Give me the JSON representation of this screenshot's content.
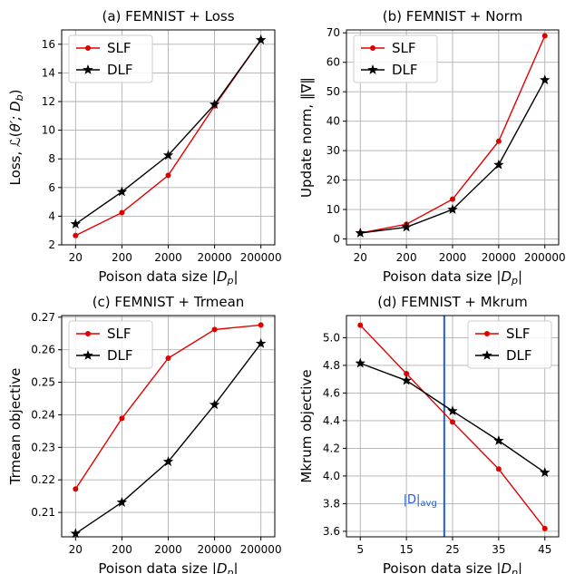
{
  "chart_data": [
    {
      "type": "line",
      "title": "(a) FEMNIST + Loss",
      "xlabel": "Poison data size |D_p|",
      "ylabel": "Loss, ℒ(θ′; D_b)",
      "categories": [
        "20",
        "200",
        "2000",
        "20000",
        "200000"
      ],
      "xlim": [
        -0.3,
        4.3
      ],
      "ylim": [
        2,
        17
      ],
      "yticks": [
        2,
        4,
        6,
        8,
        10,
        12,
        14,
        16
      ],
      "series": [
        {
          "name": "SLF",
          "color": "#e00000",
          "marker": "circle",
          "values": [
            2.65,
            4.25,
            6.85,
            11.7,
            16.3
          ]
        },
        {
          "name": "DLF",
          "color": "#000000",
          "marker": "star",
          "values": [
            3.45,
            5.7,
            8.25,
            11.8,
            16.3
          ]
        }
      ],
      "legend": "upper-left",
      "grid": true
    },
    {
      "type": "line",
      "title": "(b) FEMNIST + Norm",
      "xlabel": "Poison data size |D_p|",
      "ylabel": "Update norm, ‖∇‖",
      "categories": [
        "20",
        "200",
        "2000",
        "20000",
        "200000"
      ],
      "xlim": [
        -0.3,
        4.3
      ],
      "ylim": [
        -2,
        71
      ],
      "yticks": [
        0,
        10,
        20,
        30,
        40,
        50,
        60,
        70
      ],
      "series": [
        {
          "name": "SLF",
          "color": "#e00000",
          "marker": "circle",
          "values": [
            2,
            5,
            13.5,
            33.2,
            69
          ]
        },
        {
          "name": "DLF",
          "color": "#000000",
          "marker": "star",
          "values": [
            2,
            4,
            10,
            25.2,
            54
          ]
        }
      ],
      "legend": "upper-left",
      "grid": true
    },
    {
      "type": "line",
      "title": "(c) FEMNIST + Trmean",
      "xlabel": "Poison data size |D_p|",
      "ylabel": "Trmean objective",
      "categories": [
        "20",
        "200",
        "2000",
        "20000",
        "200000"
      ],
      "xlim": [
        -0.3,
        4.3
      ],
      "ylim": [
        0.2025,
        0.2705
      ],
      "yticks": [
        0.21,
        0.22,
        0.23,
        0.24,
        0.25,
        0.26,
        0.27
      ],
      "series": [
        {
          "name": "SLF",
          "color": "#e00000",
          "marker": "circle",
          "values": [
            0.2172,
            0.2389,
            0.2574,
            0.2662,
            0.2676
          ]
        },
        {
          "name": "DLF",
          "color": "#000000",
          "marker": "star",
          "values": [
            0.2035,
            0.2131,
            0.2256,
            0.2431,
            0.2619
          ]
        }
      ],
      "legend": "upper-left",
      "grid": true
    },
    {
      "type": "line",
      "title": "(d) FEMNIST + Mkrum",
      "xlabel": "Poison data size |D_p|",
      "ylabel": "Mkrum objective",
      "categories": [
        "5",
        "15",
        "25",
        "35",
        "45"
      ],
      "xlim": [
        -0.3,
        4.3
      ],
      "ylim": [
        3.56,
        5.16
      ],
      "yticks": [
        3.6,
        3.8,
        4.0,
        4.2,
        4.4,
        4.6,
        4.8,
        5.0
      ],
      "series": [
        {
          "name": "SLF",
          "color": "#e00000",
          "marker": "circle",
          "values": [
            5.09,
            4.74,
            4.39,
            4.05,
            3.62
          ]
        },
        {
          "name": "DLF",
          "color": "#000000",
          "marker": "star",
          "values": [
            4.815,
            4.69,
            4.47,
            4.255,
            4.025
          ]
        }
      ],
      "vline": {
        "x": 23.2,
        "label": "|D|avg",
        "color": "#1f5fd6"
      },
      "legend": "upper-right",
      "grid": true
    }
  ]
}
